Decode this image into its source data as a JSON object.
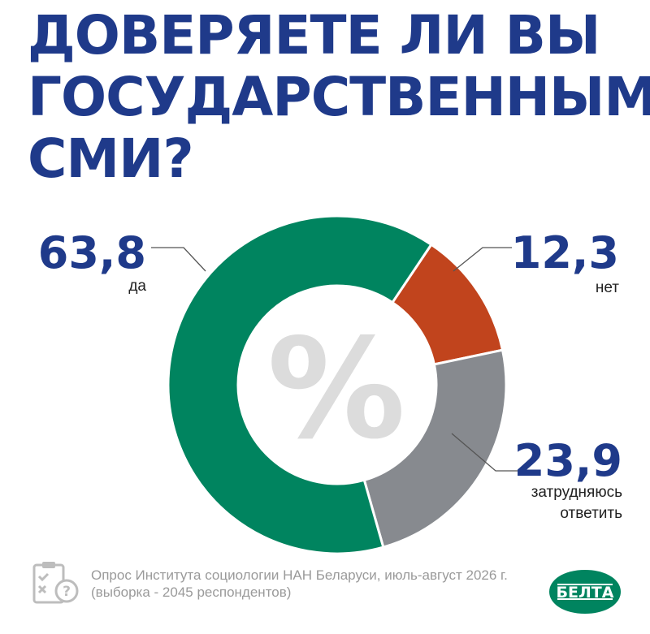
{
  "title": {
    "line1": "ДОВЕРЯЕТЕ ЛИ ВЫ",
    "line2": "ГОСУДАРСТВЕННЫМ",
    "line3": "СМИ?"
  },
  "chart_data": {
    "type": "pie",
    "title": "ДОВЕРЯЕТЕ ЛИ ВЫ ГОСУДАРСТВЕННЫМ СМИ?",
    "center_symbol": "%",
    "slices": [
      {
        "label": "да",
        "value": 63.8,
        "value_text": "63,8",
        "color": "#00845f"
      },
      {
        "label": "нет",
        "value": 12.3,
        "value_text": "12,3",
        "color": "#c1441d"
      },
      {
        "label": "затрудняюсь ответить",
        "value": 23.9,
        "value_text": "23,9",
        "color": "#878a8f"
      }
    ]
  },
  "labels": {
    "da": {
      "value": "63,8",
      "caption": "да"
    },
    "net": {
      "value": "12,3",
      "caption": "нет"
    },
    "hard": {
      "value": "23,9",
      "caption_line1": "затрудняюсь",
      "caption_line2": "ответить"
    }
  },
  "footer": {
    "line1": "Опрос Института социологии НАН Беларуси, июль-август 2026 г.",
    "line2": "(выборка - 2045 респондентов)"
  },
  "logo": {
    "text": "БЕЛТА",
    "color": "#00845f"
  },
  "icons": {
    "survey": "clipboard-checklist-icon",
    "center": "percent-icon"
  }
}
